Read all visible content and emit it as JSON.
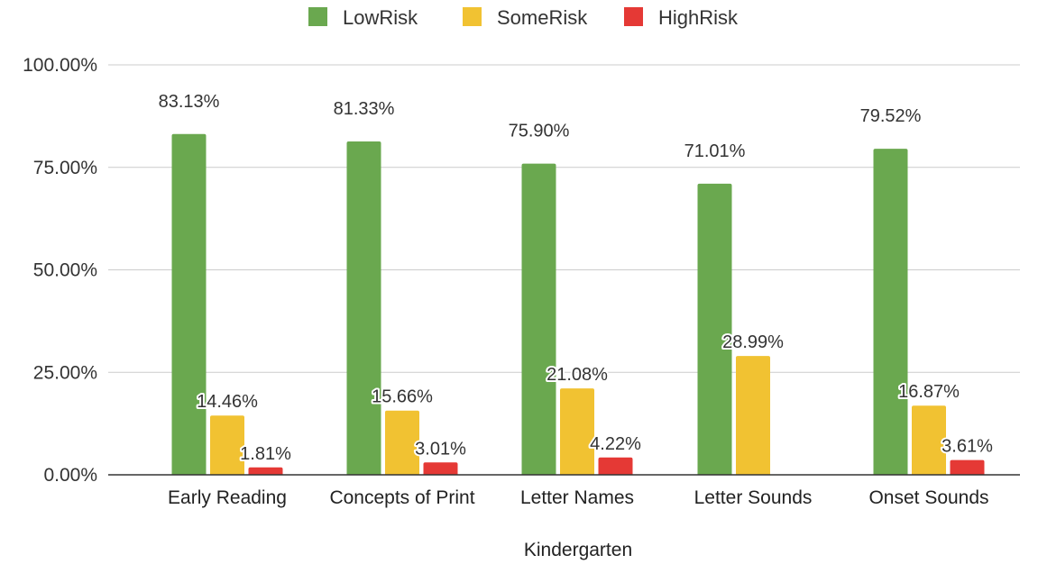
{
  "chart_data": {
    "type": "bar",
    "title": "",
    "xlabel": "Kindergarten",
    "ylabel": "",
    "ylim": [
      0,
      100
    ],
    "yticks": [
      0,
      25,
      50,
      75,
      100
    ],
    "ytick_labels": [
      "0.00%",
      "25.00%",
      "50.00%",
      "75.00%",
      "100.00%"
    ],
    "grid": true,
    "legend_position": "top",
    "categories": [
      "Early Reading",
      "Concepts of Print",
      "Letter Names",
      "Letter Sounds",
      "Onset Sounds"
    ],
    "series": [
      {
        "name": "LowRisk",
        "color": "#6aa84f",
        "values": [
          83.13,
          81.33,
          75.9,
          71.01,
          79.52
        ],
        "labels": [
          "83.13%",
          "81.33%",
          "75.90%",
          "71.01%",
          "79.52%"
        ]
      },
      {
        "name": "SomeRisk",
        "color": "#f1c232",
        "values": [
          14.46,
          15.66,
          21.08,
          28.99,
          16.87
        ],
        "labels": [
          "14.46%",
          "15.66%",
          "21.08%",
          "28.99%",
          "16.87%"
        ]
      },
      {
        "name": "HighRisk",
        "color": "#e53935",
        "values": [
          1.81,
          3.01,
          4.22,
          0,
          3.61
        ],
        "labels": [
          "1.81%",
          "3.01%",
          "4.22%",
          "",
          "3.61%"
        ]
      }
    ]
  }
}
